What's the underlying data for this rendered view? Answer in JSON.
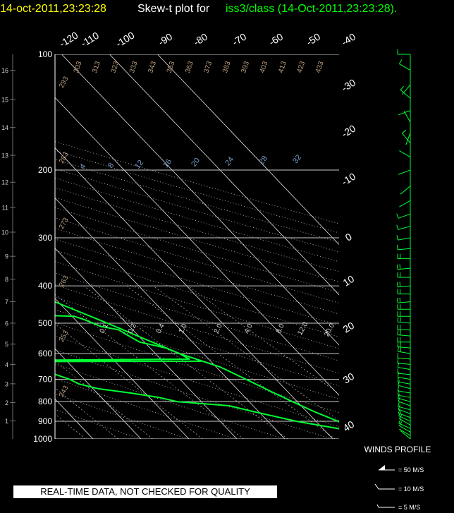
{
  "header": {
    "date_label": "14-oct-2011,23:23:28",
    "plot_label": "Skew-t plot for",
    "source_label": "iss3/class (14-Oct-2011,23:23:28)."
  },
  "colors": {
    "background": "#000000",
    "date_label": "#ffff00",
    "plot_label": "#ffffff",
    "source_label": "#00ff00",
    "traces": "#00ff33",
    "grid": "#ffffff",
    "isobars": "#cccccc",
    "dry_adiabats": "#b49a7c",
    "mixing_ratio": "#7a9cc8"
  },
  "chart_data": {
    "type": "line",
    "pressure_ticks": [
      100,
      200,
      300,
      400,
      500,
      600,
      700,
      800,
      900,
      1000
    ],
    "height_ticks": [
      1,
      2,
      3,
      4,
      5,
      6,
      7,
      8,
      9,
      10,
      11,
      12,
      13,
      14,
      15,
      16
    ],
    "height_tick_pressures": [
      898,
      805,
      719,
      640,
      567,
      500,
      440,
      384,
      335,
      290,
      250,
      215,
      183,
      155,
      131,
      110
    ],
    "temp_ticks_top": [
      "-120",
      "-110",
      "-100",
      "-90",
      "-80",
      "-70",
      "-60",
      "-50",
      "-40"
    ],
    "temp_ticks_right": [
      "-30",
      "-20",
      "-10",
      "0",
      "10",
      "20",
      "30",
      "40"
    ],
    "dry_adiabat_labels": [
      "243",
      "253",
      "263",
      "273",
      "283",
      "293",
      "303",
      "313",
      "323",
      "333",
      "343",
      "353",
      "363",
      "373",
      "383",
      "393",
      "403",
      "413",
      "423",
      "433"
    ],
    "mixing_ratio_labels_upper": [
      "4",
      "8",
      "12",
      "16",
      "20",
      "24",
      "28",
      "32"
    ],
    "mixing_ratio_labels_lower": [
      "0.1",
      "0.2",
      "0.4",
      "1.0",
      "2.0",
      "4.0",
      "8.0",
      "12.0",
      "20.0"
    ],
    "ylim_pressure": [
      1000,
      100
    ],
    "series": [
      {
        "role": "temperature",
        "points": [
          [
            1000,
            17.5
          ],
          [
            950,
            17
          ],
          [
            900,
            14.6
          ],
          [
            850,
            11.6
          ],
          [
            800,
            9
          ],
          [
            750,
            6.4
          ],
          [
            700,
            3.8
          ],
          [
            650,
            0.8
          ],
          [
            600,
            -5
          ],
          [
            550,
            -9.3
          ],
          [
            500,
            -14
          ],
          [
            450,
            -19.5
          ],
          [
            400,
            -25.7
          ],
          [
            350,
            -33
          ],
          [
            300,
            -41.7
          ],
          [
            250,
            -51
          ],
          [
            200,
            -59
          ],
          [
            170,
            -62
          ],
          [
            150,
            -64
          ],
          [
            130,
            -67
          ],
          [
            120,
            -69
          ],
          [
            110,
            -72.5
          ],
          [
            100,
            -73
          ]
        ]
      },
      {
        "role": "dewpoint",
        "points": [
          [
            1000,
            17
          ],
          [
            960,
            16
          ],
          [
            950,
            15
          ],
          [
            900,
            6
          ],
          [
            850,
            -1
          ],
          [
            820,
            -5
          ],
          [
            800,
            -15
          ],
          [
            780,
            -18
          ],
          [
            760,
            -23
          ],
          [
            740,
            -29
          ],
          [
            720,
            -32
          ],
          [
            700,
            -33
          ],
          [
            690,
            -34
          ],
          [
            670,
            -36
          ],
          [
            660,
            -35
          ],
          [
            650,
            -36
          ],
          [
            640,
            -38
          ],
          [
            630,
            -52
          ],
          [
            628,
            -2
          ],
          [
            626,
            -52
          ],
          [
            620,
            -4
          ],
          [
            600,
            -5
          ],
          [
            580,
            -6.7
          ],
          [
            560,
            -11
          ],
          [
            540,
            -12
          ],
          [
            520,
            -13
          ],
          [
            510,
            -16
          ],
          [
            500,
            -17
          ],
          [
            490,
            -18
          ],
          [
            480,
            -19.5
          ],
          [
            470,
            -40
          ],
          [
            460,
            -40
          ],
          [
            450,
            -35
          ],
          [
            430,
            -35
          ],
          [
            410,
            -35
          ],
          [
            400,
            -36
          ],
          [
            380,
            -40
          ],
          [
            370,
            -38
          ],
          [
            360,
            -38
          ],
          [
            350,
            -43
          ],
          [
            340,
            -44
          ],
          [
            320,
            -48
          ],
          [
            310,
            -48
          ],
          [
            300,
            -43
          ],
          [
            290,
            -62
          ],
          [
            280,
            -68
          ],
          [
            270,
            -70
          ],
          [
            260,
            -72
          ],
          [
            250,
            -69
          ],
          [
            240,
            -73
          ],
          [
            230,
            -70
          ],
          [
            220,
            -68
          ],
          [
            205,
            -68
          ],
          [
            200,
            -73
          ],
          [
            190,
            -75
          ],
          [
            180,
            -78
          ],
          [
            170,
            -77
          ],
          [
            160,
            -79
          ],
          [
            150,
            -84
          ],
          [
            140,
            -89
          ],
          [
            130,
            -83
          ],
          [
            120,
            -82
          ],
          [
            110,
            -79
          ],
          [
            100,
            -80
          ]
        ]
      }
    ],
    "winds": {
      "label": "WINDS PROFILE",
      "legend": [
        "= 50 M/S",
        "= 10 M/S",
        "= 5 M/S"
      ],
      "barbs": [
        [
          1000,
          310,
          8
        ],
        [
          980,
          300,
          9
        ],
        [
          960,
          300,
          10
        ],
        [
          940,
          295,
          10
        ],
        [
          920,
          300,
          11
        ],
        [
          900,
          295,
          12
        ],
        [
          880,
          290,
          12
        ],
        [
          860,
          290,
          13
        ],
        [
          840,
          285,
          13
        ],
        [
          820,
          290,
          14
        ],
        [
          800,
          285,
          15
        ],
        [
          780,
          280,
          15
        ],
        [
          760,
          280,
          16
        ],
        [
          740,
          285,
          16
        ],
        [
          720,
          280,
          17
        ],
        [
          700,
          280,
          17
        ],
        [
          680,
          275,
          18
        ],
        [
          660,
          280,
          18
        ],
        [
          640,
          275,
          19
        ],
        [
          620,
          275,
          19
        ],
        [
          600,
          280,
          20
        ],
        [
          580,
          275,
          20
        ],
        [
          560,
          270,
          21
        ],
        [
          540,
          275,
          22
        ],
        [
          520,
          270,
          22
        ],
        [
          500,
          275,
          23
        ],
        [
          480,
          270,
          23
        ],
        [
          460,
          270,
          24
        ],
        [
          440,
          265,
          24
        ],
        [
          420,
          270,
          25
        ],
        [
          400,
          265,
          25
        ],
        [
          380,
          270,
          24
        ],
        [
          360,
          265,
          22
        ],
        [
          340,
          270,
          20
        ],
        [
          320,
          265,
          18
        ],
        [
          300,
          260,
          15
        ],
        [
          280,
          255,
          12
        ],
        [
          260,
          250,
          10
        ],
        [
          240,
          240,
          8
        ],
        [
          220,
          230,
          7
        ],
        [
          200,
          250,
          6
        ],
        [
          185,
          300,
          8
        ],
        [
          170,
          320,
          10
        ],
        [
          160,
          200,
          7
        ],
        [
          150,
          330,
          9
        ],
        [
          140,
          250,
          8
        ],
        [
          130,
          310,
          10
        ],
        [
          120,
          220,
          9
        ],
        [
          110,
          300,
          12
        ],
        [
          100,
          270,
          14
        ]
      ]
    }
  },
  "notice": "REAL-TIME DATA, NOT CHECKED FOR QUALITY"
}
